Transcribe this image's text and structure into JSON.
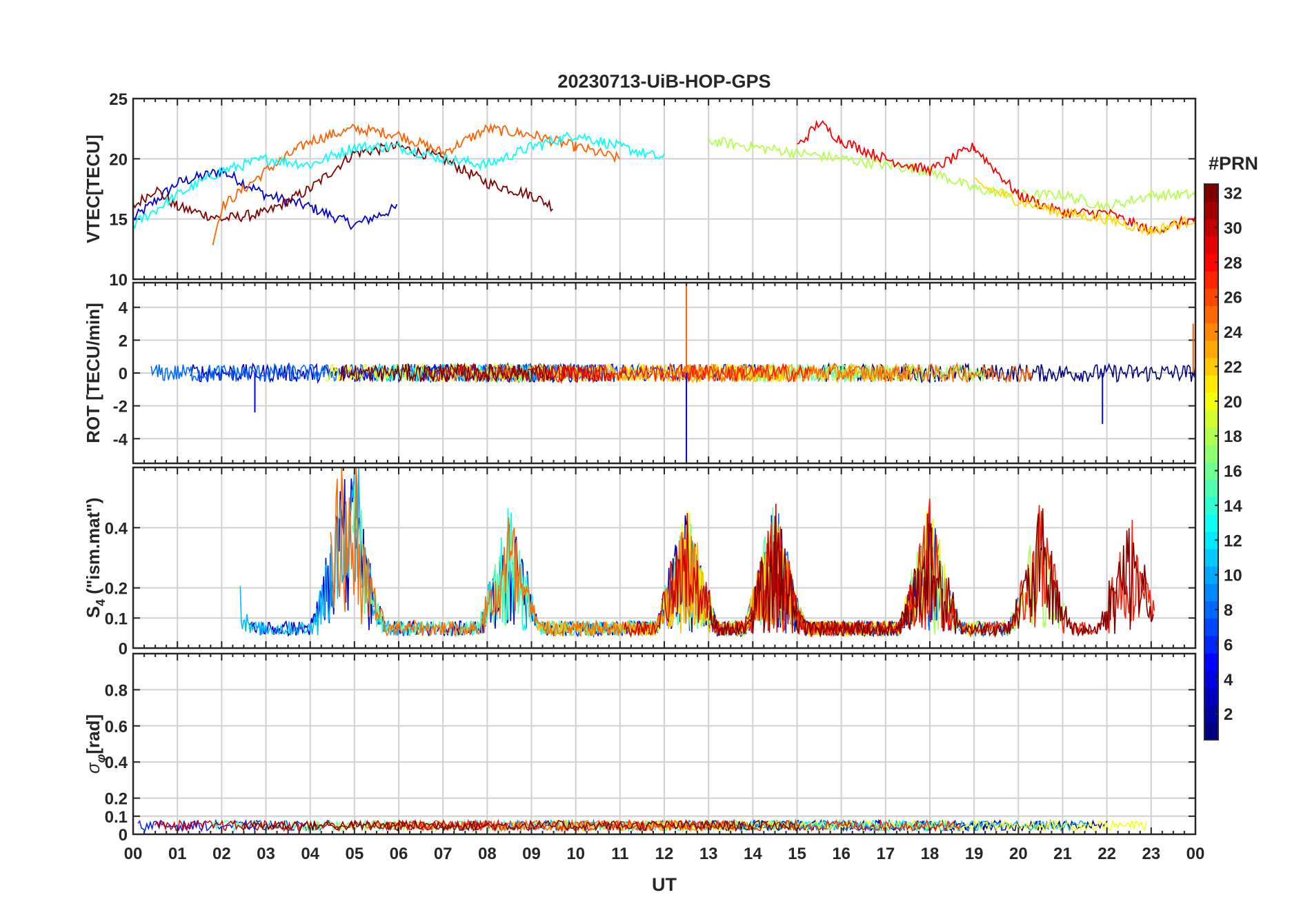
{
  "chart_data": {
    "type": "line",
    "title": "20230713-UiB-HOP-GPS",
    "xlabel": "UT",
    "x_ticks": [
      "00",
      "01",
      "02",
      "03",
      "04",
      "05",
      "06",
      "07",
      "08",
      "09",
      "10",
      "11",
      "12",
      "13",
      "14",
      "15",
      "16",
      "17",
      "18",
      "19",
      "20",
      "21",
      "22",
      "23",
      "00"
    ],
    "xlim_hours": [
      0,
      24
    ],
    "grid": true,
    "colorbar": {
      "label": "#PRN",
      "range": [
        1,
        32
      ],
      "ticks": [
        "2",
        "4",
        "6",
        "8",
        "10",
        "12",
        "14",
        "16",
        "18",
        "20",
        "22",
        "24",
        "26",
        "28",
        "30",
        "32"
      ],
      "colormap": "jet",
      "placement": "right"
    },
    "panels": [
      {
        "ylabel": "VTEC[TECU]",
        "ylim": [
          10,
          25
        ],
        "yticks": [
          "10",
          "15",
          "20",
          "25"
        ],
        "series_summary": [
          {
            "prn_color": "blue",
            "x": [
              0,
              1,
              2,
              3,
              4,
              5,
              6
            ],
            "y": [
              15,
              18,
              19,
              17,
              16,
              14.5,
              16
            ]
          },
          {
            "prn_color": "dark-red",
            "x": [
              0,
              0.5,
              1,
              2,
              3,
              4,
              5,
              6,
              7,
              8,
              9,
              9.5
            ],
            "y": [
              16,
              17.5,
              16,
              15,
              15.5,
              17.5,
              20.5,
              21,
              20,
              18,
              17,
              16
            ]
          },
          {
            "prn_color": "orange",
            "x": [
              1.8,
              2,
              3,
              4,
              5,
              6,
              7,
              8,
              9,
              10,
              11
            ],
            "y": [
              13,
              16,
              19,
              21.5,
              22.5,
              22,
              20.5,
              22.5,
              22,
              21,
              20
            ]
          },
          {
            "prn_color": "cyan",
            "x": [
              0,
              1,
              2,
              3,
              4,
              5,
              6,
              7,
              8,
              9,
              10,
              11,
              12
            ],
            "y": [
              14.5,
              17,
              19,
              20,
              19.5,
              21,
              21,
              20,
              19.5,
              21,
              22,
              21,
              20
            ]
          },
          {
            "prn_color": "green",
            "x": [
              13,
              14,
              15,
              16,
              17,
              18,
              19,
              20,
              21,
              22,
              23,
              24
            ],
            "y": [
              21.5,
              21,
              20.5,
              20,
              19.5,
              19,
              17.5,
              17,
              17,
              16,
              17,
              17
            ]
          },
          {
            "prn_color": "red",
            "x": [
              15,
              15.5,
              16,
              17,
              18,
              19,
              20,
              21,
              22,
              23,
              24
            ],
            "y": [
              21,
              23,
              21.5,
              20,
              19,
              21,
              17,
              15.5,
              15.5,
              14,
              15
            ]
          },
          {
            "prn_color": "yellow",
            "x": [
              19,
              20,
              21,
              22,
              23,
              24
            ],
            "y": [
              18,
              16.5,
              15.5,
              15,
              14,
              15
            ]
          }
        ]
      },
      {
        "ylabel": "ROT [TECU/min]",
        "ylim": [
          -5.5,
          5.5
        ],
        "yticks": [
          "-4",
          "-2",
          "0",
          "2",
          "4"
        ],
        "typical_range": [
          -1,
          1
        ],
        "notable_spikes": [
          {
            "x_hour": 2.75,
            "value": -2.4
          },
          {
            "x_hour": 12.5,
            "value": 5.5
          },
          {
            "x_hour": 12.5,
            "value": -5.5
          },
          {
            "x_hour": 21.9,
            "value": -3.1
          },
          {
            "x_hour": 23.95,
            "value": 3
          }
        ]
      },
      {
        "ylabel": "S4 (\"ism.mat\")",
        "ylabel_main": "S",
        "ylabel_sub": "4",
        "ylabel_rest": " (\"ism.mat\")",
        "ylim": [
          0,
          0.6
        ],
        "yticks": [
          "0",
          "0.1",
          "0.2",
          "0.4"
        ],
        "activity_peaks_hours": [
          2,
          4.7,
          5,
          8.5,
          12.5,
          14.5,
          18,
          20.5,
          22.5
        ],
        "max_value": 0.6
      },
      {
        "ylabel": "σφ[rad]",
        "ylabel_main": "σ",
        "ylabel_sub": "φ",
        "ylabel_rest": "[rad]",
        "ylim": [
          0,
          1
        ],
        "yticks": [
          "0",
          "0.1",
          "0.2",
          "0.4",
          "0.6",
          "0.8"
        ],
        "typical_range": [
          0.02,
          0.1
        ]
      }
    ]
  }
}
